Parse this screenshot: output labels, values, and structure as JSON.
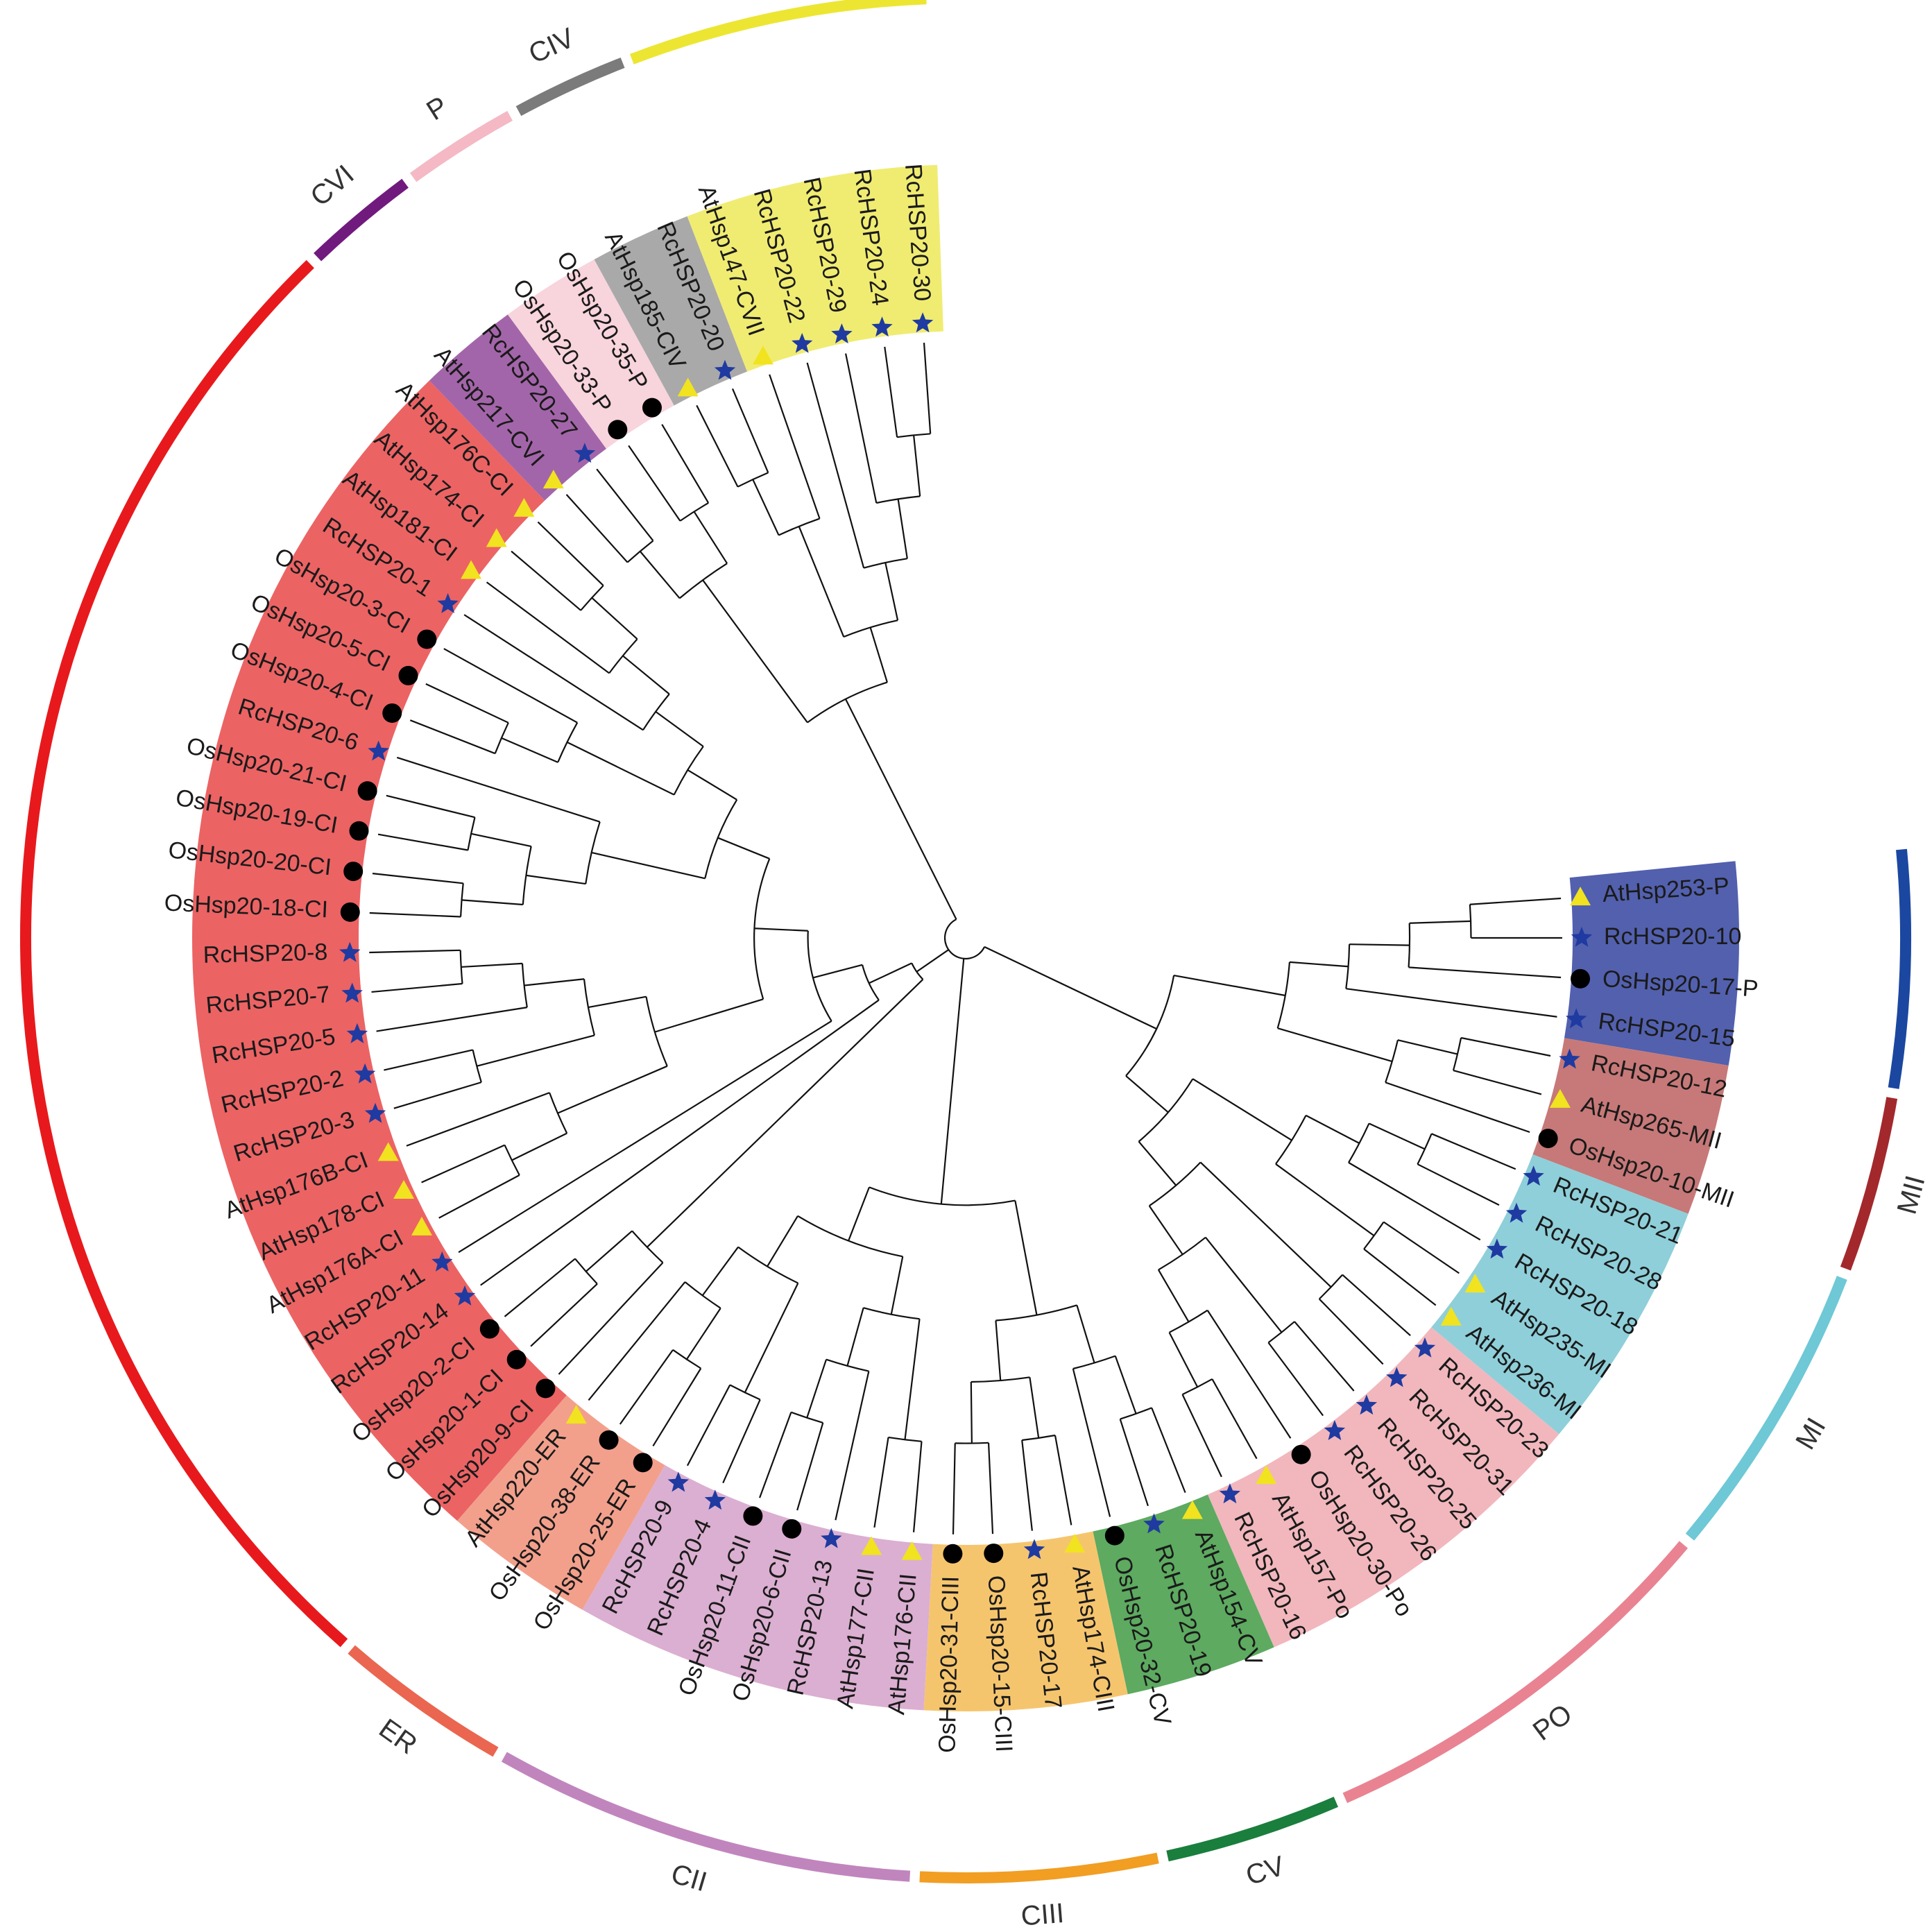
{
  "groups": [
    {
      "id": "CI",
      "label": "CI",
      "color": "#e8191c",
      "bg": "#ec6364"
    },
    {
      "id": "CVI",
      "label": "CVI",
      "color": "#711a7e",
      "bg": "#a365a9"
    },
    {
      "id": "P1",
      "label": "P",
      "color": "#f4b9c4",
      "bg": "#f8d4dc"
    },
    {
      "id": "CIV",
      "label": "CIV",
      "color": "#7b7b7b",
      "bg": "#a9a9a9"
    },
    {
      "id": "CVII",
      "label": "CVII",
      "color": "#ece633",
      "bg": "#f0ec72"
    },
    {
      "id": "P2",
      "label": "P",
      "color": "#1b47a0",
      "bg": "#5260ae"
    },
    {
      "id": "MII",
      "label": "MII",
      "color": "#a3282c",
      "bg": "#c67978"
    },
    {
      "id": "MI",
      "label": "MI",
      "color": "#6ec8d6",
      "bg": "#8fcfd9"
    },
    {
      "id": "PO",
      "label": "PO",
      "color": "#e98392",
      "bg": "#f1b7bd"
    },
    {
      "id": "CV",
      "label": "CV",
      "color": "#1a7e3d",
      "bg": "#5daa60"
    },
    {
      "id": "CIII",
      "label": "CIII",
      "color": "#f19e23",
      "bg": "#f5c56e"
    },
    {
      "id": "CII",
      "label": "CII",
      "color": "#c185be",
      "bg": "#dbafd1"
    },
    {
      "id": "ER",
      "label": "ER",
      "color": "#ea6650",
      "bg": "#f2a08c"
    }
  ],
  "marker_colors": {
    "At": "#f1e31f",
    "Rc": "#1f3aa0",
    "Os": "#000000"
  },
  "leaves": [
    {
      "name": "AtHsp25.3-P",
      "display": "AtHsp253-P",
      "group": "P2",
      "species": "At",
      "angle": -3.8
    },
    {
      "name": "RcHSP20-10",
      "display": "RcHSP20-10",
      "group": "P2",
      "species": "Rc",
      "angle": 0
    },
    {
      "name": "OsHsp20-17-P",
      "display": "OsHsp20-17-P",
      "group": "P2",
      "species": "Os",
      "angle": 3.8
    },
    {
      "name": "RcHSP20-15",
      "display": "RcHSP20-15",
      "group": "P2",
      "species": "Rc",
      "angle": 7.6
    },
    {
      "name": "RcHSP20-12",
      "display": "RcHSP20-12",
      "group": "MII",
      "species": "Rc",
      "angle": 11.4
    },
    {
      "name": "AtHsp26.5-MII",
      "display": "AtHsp265-MII",
      "group": "MII",
      "species": "At",
      "angle": 15.2
    },
    {
      "name": "OsHsp20-10-MII",
      "display": "OsHsp20-10-MII",
      "group": "MII",
      "species": "Os",
      "angle": 19
    },
    {
      "name": "RcHSP20-21",
      "display": "RcHSP20-21",
      "group": "MI",
      "species": "Rc",
      "angle": 22.8
    },
    {
      "name": "RcHSP20-28",
      "display": "RcHSP20-28",
      "group": "MI",
      "species": "Rc",
      "angle": 26.6
    },
    {
      "name": "RcHSP20-18",
      "display": "RcHSP20-18",
      "group": "MI",
      "species": "Rc",
      "angle": 30.4
    },
    {
      "name": "AtHsp23.5-MI",
      "display": "AtHsp235-MI",
      "group": "MI",
      "species": "At",
      "angle": 34.2
    },
    {
      "name": "AtHsp23.6-MI",
      "display": "AtHsp236-MI",
      "group": "MI",
      "species": "At",
      "angle": 38
    },
    {
      "name": "RcHSP20-23",
      "display": "RcHSP20-23",
      "group": "PO",
      "species": "Rc",
      "angle": 41.8
    },
    {
      "name": "RcHSP20-31",
      "display": "RcHSP20-31",
      "group": "PO",
      "species": "Rc",
      "angle": 45.6
    },
    {
      "name": "RcHSP20-25",
      "display": "RcHSP20-25",
      "group": "PO",
      "species": "Rc",
      "angle": 49.4
    },
    {
      "name": "RcHSP20-26",
      "display": "RcHSP20-26",
      "group": "PO",
      "species": "Rc",
      "angle": 53.2
    },
    {
      "name": "OsHsp20-30-Po",
      "display": "OsHsp20-30-Po",
      "group": "PO",
      "species": "Os",
      "angle": 57
    },
    {
      "name": "AtHsp15.7-Po",
      "display": "AtHsp157-Po",
      "group": "PO",
      "species": "At",
      "angle": 60.8
    },
    {
      "name": "RcHSP20-16",
      "display": "RcHSP20-16",
      "group": "PO",
      "species": "Rc",
      "angle": 64.6
    },
    {
      "name": "AtHsp15.4-CV",
      "display": "AtHsp154-CV",
      "group": "CV",
      "species": "At",
      "angle": 68.4
    },
    {
      "name": "RcHSP20-19",
      "display": "RcHSP20-19",
      "group": "CV",
      "species": "Rc",
      "angle": 72.2
    },
    {
      "name": "OsHsp20-32-CV",
      "display": "OsHsp20-32-CV",
      "group": "CV",
      "species": "Os",
      "angle": 76
    },
    {
      "name": "AtHsp17.4-CIII",
      "display": "AtHsp174-CIII",
      "group": "CIII",
      "species": "At",
      "angle": 79.8
    },
    {
      "name": "RcHSP20-17",
      "display": "RcHSP20-17",
      "group": "CIII",
      "species": "Rc",
      "angle": 83.6
    },
    {
      "name": "OsHsp20-15-CIII",
      "display": "OsHsp20-15-CIII",
      "group": "CIII",
      "species": "Os",
      "angle": 87.4
    },
    {
      "name": "OsHsp20-31-CIII",
      "display": "OsHsp20-31-CIII",
      "group": "CIII",
      "species": "Os",
      "angle": 91.2
    },
    {
      "name": "AtHsp17.6-CII",
      "display": "AtHsp176-CII",
      "group": "CII",
      "species": "At",
      "angle": 95
    },
    {
      "name": "AtHsp17.7-CII",
      "display": "AtHsp177-CII",
      "group": "CII",
      "species": "At",
      "angle": 98.8
    },
    {
      "name": "RcHSP20-13",
      "display": "RcHSP20-13",
      "group": "CII",
      "species": "Rc",
      "angle": 102.6
    },
    {
      "name": "OsHsp20-6-CII",
      "display": "OsHsp20-6-CII",
      "group": "CII",
      "species": "Os",
      "angle": 106.4
    },
    {
      "name": "OsHsp20-11-CII",
      "display": "OsHsp20-11-CII",
      "group": "CII",
      "species": "Os",
      "angle": 110.2
    },
    {
      "name": "RcHSP20-4",
      "display": "RcHSP20-4",
      "group": "CII",
      "species": "Rc",
      "angle": 114
    },
    {
      "name": "RcHSP20-9",
      "display": "RcHSP20-9",
      "group": "CII",
      "species": "Rc",
      "angle": 117.8
    },
    {
      "name": "OsHsp20-25-ER",
      "display": "OsHsp20-25-ER",
      "group": "ER",
      "species": "Os",
      "angle": 121.6
    },
    {
      "name": "OsHsp20-38-ER",
      "display": "OsHsp20-38-ER",
      "group": "ER",
      "species": "Os",
      "angle": 125.4
    },
    {
      "name": "AtHsp22.0-ER",
      "display": "AtHsp220-ER",
      "group": "ER",
      "species": "At",
      "angle": 129.2
    },
    {
      "name": "OsHsp20-9-CI",
      "display": "OsHsp20-9-CI",
      "group": "CI",
      "species": "Os",
      "angle": 133
    },
    {
      "name": "OsHsp20-1-CI",
      "display": "OsHsp20-1-CI",
      "group": "CI",
      "species": "Os",
      "angle": 136.8
    },
    {
      "name": "OsHsp20-2-CI",
      "display": "OsHsp20-2-CI",
      "group": "CI",
      "species": "Os",
      "angle": 140.6
    },
    {
      "name": "RcHSP20-14",
      "display": "RcHSP20-14",
      "group": "CI",
      "species": "Rc",
      "angle": 144.4
    },
    {
      "name": "RcHSP20-11",
      "display": "RcHSP20-11",
      "group": "CI",
      "species": "Rc",
      "angle": 148.2
    },
    {
      "name": "AtHsp17.6A-CI",
      "display": "AtHsp176A-CI",
      "group": "CI",
      "species": "At",
      "angle": 152
    },
    {
      "name": "AtHsp17.8-CI",
      "display": "AtHsp178-CI",
      "group": "CI",
      "species": "At",
      "angle": 155.8
    },
    {
      "name": "AtHsp17.6B-CI",
      "display": "AtHsp176B-CI",
      "group": "CI",
      "species": "At",
      "angle": 159.6
    },
    {
      "name": "RcHSP20-3",
      "display": "RcHSP20-3",
      "group": "CI",
      "species": "Rc",
      "angle": 163.4
    },
    {
      "name": "RcHSP20-2",
      "display": "RcHSP20-2",
      "group": "CI",
      "species": "Rc",
      "angle": 167.2
    },
    {
      "name": "RcHSP20-5",
      "display": "RcHSP20-5",
      "group": "CI",
      "species": "Rc",
      "angle": 171
    },
    {
      "name": "RcHSP20-7",
      "display": "RcHSP20-7",
      "group": "CI",
      "species": "Rc",
      "angle": 174.8
    },
    {
      "name": "RcHSP20-8",
      "display": "RcHSP20-8",
      "group": "CI",
      "species": "Rc",
      "angle": 178.6
    },
    {
      "name": "OsHsp20-18-CI",
      "display": "OsHsp20-18-CI",
      "group": "CI",
      "species": "Os",
      "angle": 182.4
    },
    {
      "name": "OsHsp20-20-CI",
      "display": "OsHsp20-20-CI",
      "group": "CI",
      "species": "Os",
      "angle": 186.2
    },
    {
      "name": "OsHsp20-19-CI",
      "display": "OsHsp20-19-CI",
      "group": "CI",
      "species": "Os",
      "angle": 190
    },
    {
      "name": "OsHsp20-21-CI",
      "display": "OsHsp20-21-CI",
      "group": "CI",
      "species": "Os",
      "angle": 193.8
    },
    {
      "name": "RcHSP20-6",
      "display": "RcHSP20-6",
      "group": "CI",
      "species": "Rc",
      "angle": 197.6
    },
    {
      "name": "OsHsp20-4-CI",
      "display": "OsHsp20-4-CI",
      "group": "CI",
      "species": "Os",
      "angle": 201.4
    },
    {
      "name": "OsHsp20-5-CI",
      "display": "OsHsp20-5-CI",
      "group": "CI",
      "species": "Os",
      "angle": 205.2
    },
    {
      "name": "OsHsp20-3-CI",
      "display": "OsHsp20-3-CI",
      "group": "CI",
      "species": "Os",
      "angle": 209
    },
    {
      "name": "RcHSP20-1",
      "display": "RcHSP20-1",
      "group": "CI",
      "species": "Rc",
      "angle": 212.8
    },
    {
      "name": "AtHsp18.1-CI",
      "display": "AtHsp181-CI",
      "group": "CI",
      "species": "At",
      "angle": 216.6
    },
    {
      "name": "AtHsp17.4-CI",
      "display": "AtHsp174-CI",
      "group": "CI",
      "species": "At",
      "angle": 220.4
    },
    {
      "name": "AtHsp17.6C-CI",
      "display": "AtHsp176C-CI",
      "group": "CI",
      "species": "At",
      "angle": 224.2
    },
    {
      "name": "AtHsp21.7-CVI",
      "display": "AtHsp217-CVI",
      "group": "CVI",
      "species": "At",
      "angle": 228
    },
    {
      "name": "RcHSP20-27",
      "display": "RcHSP20-27",
      "group": "CVI",
      "species": "Rc",
      "angle": 231.8
    },
    {
      "name": "OsHsp20-33-P",
      "display": "OsHsp20-33-P",
      "group": "P1",
      "species": "Os",
      "angle": 235.6
    },
    {
      "name": "OsHsp20-35-P",
      "display": "OsHsp20-35-P",
      "group": "P1",
      "species": "Os",
      "angle": 239.4
    },
    {
      "name": "AtHsp18.5-CIV",
      "display": "AtHsp185-CIV",
      "group": "CIV",
      "species": "At",
      "angle": 243.2
    },
    {
      "name": "RcHSP20-20",
      "display": "RcHSP20-20",
      "group": "CIV",
      "species": "Rc",
      "angle": 247
    },
    {
      "name": "AtHsp14.7-CVII",
      "display": "AtHsp147-CVII",
      "group": "CVII",
      "species": "At",
      "angle": 250.8
    },
    {
      "name": "RcHSP20-22",
      "display": "RcHSP20-22",
      "group": "CVII",
      "species": "Rc",
      "angle": 254.6
    },
    {
      "name": "RcHSP20-29",
      "display": "RcHSP20-29",
      "group": "CVII",
      "species": "Rc",
      "angle": 258.4
    },
    {
      "name": "RcHSP20-24",
      "display": "RcHSP20-24",
      "group": "CVII",
      "species": "Rc",
      "angle": 262.2
    },
    {
      "name": "RcHSP20-30",
      "display": "RcHSP20-30",
      "group": "CVII",
      "species": "Rc",
      "angle": 266
    }
  ]
}
